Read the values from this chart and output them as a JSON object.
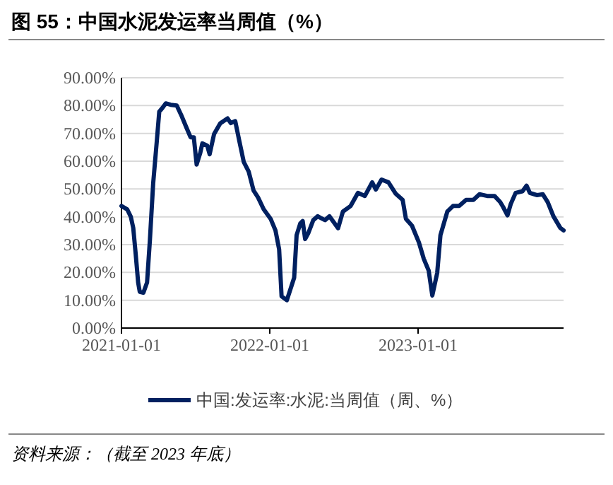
{
  "chart_data": {
    "type": "line",
    "title": "图 55：中国水泥发运率当周值（%）",
    "annotations": [
      "资料来源：（截至 2023 年底）"
    ],
    "x": [
      "2021-01-01",
      "2021-01-15",
      "2021-01-24",
      "2021-01-30",
      "2021-02-05",
      "2021-02-11",
      "2021-02-15",
      "2021-02-24",
      "2021-03-05",
      "2021-03-12",
      "2021-03-20",
      "2021-03-29",
      "2021-04-04",
      "2021-04-12",
      "2021-04-20",
      "2021-05-02",
      "2021-05-17",
      "2021-05-28",
      "2021-06-09",
      "2021-06-20",
      "2021-06-28",
      "2021-07-05",
      "2021-07-14",
      "2021-07-19",
      "2021-07-31",
      "2021-08-06",
      "2021-08-17",
      "2021-09-01",
      "2021-09-19",
      "2021-09-27",
      "2021-10-08",
      "2021-10-18",
      "2021-10-29",
      "2021-11-10",
      "2021-11-22",
      "2021-12-03",
      "2021-12-17",
      "2022-01-03",
      "2022-01-15",
      "2022-01-24",
      "2022-01-30",
      "2022-02-12",
      "2022-03-02",
      "2022-03-08",
      "2022-03-17",
      "2022-03-23",
      "2022-03-29",
      "2022-04-06",
      "2022-04-18",
      "2022-04-29",
      "2022-05-05",
      "2022-05-17",
      "2022-05-28",
      "2022-06-18",
      "2022-06-30",
      "2022-07-19",
      "2022-08-06",
      "2022-08-23",
      "2022-09-10",
      "2022-09-19",
      "2022-10-03",
      "2022-10-20",
      "2022-11-07",
      "2022-11-24",
      "2022-12-02",
      "2022-12-17",
      "2023-01-03",
      "2023-01-15",
      "2023-01-27",
      "2023-02-05",
      "2023-02-17",
      "2023-02-25",
      "2023-03-14",
      "2023-03-28",
      "2023-04-12",
      "2023-04-29",
      "2023-05-17",
      "2023-06-01",
      "2023-06-20",
      "2023-07-08",
      "2023-07-22",
      "2023-07-29",
      "2023-08-09",
      "2023-08-17",
      "2023-08-29",
      "2023-09-15",
      "2023-09-25",
      "2023-10-03",
      "2023-10-20",
      "2023-11-04",
      "2023-11-16",
      "2023-11-30",
      "2023-12-17",
      "2023-12-25"
    ],
    "series": [
      {
        "name": "中国:发运率:水泥:当周值（周、%）",
        "color": "#002060",
        "values": [
          43.9,
          42.7,
          40,
          36,
          26.6,
          16.4,
          13,
          12.7,
          16.4,
          31.7,
          52,
          67.3,
          77.8,
          79.2,
          80.8,
          80.3,
          80,
          76.6,
          72.4,
          68.6,
          68.6,
          58.8,
          63,
          66.4,
          65.6,
          62.5,
          69.8,
          73.6,
          75.4,
          73.7,
          74.4,
          67.3,
          59.7,
          56.3,
          49.5,
          47,
          42.7,
          39.3,
          35.1,
          28.3,
          11.4,
          10,
          18.1,
          33.4,
          37.6,
          38.5,
          32,
          34.2,
          38.8,
          40.2,
          39.7,
          38.8,
          40.2,
          35.9,
          41.9,
          43.9,
          48.6,
          47.5,
          52.4,
          49.8,
          53.4,
          52.4,
          48.3,
          46.1,
          39.3,
          36.8,
          30.8,
          24.9,
          20.7,
          11.7,
          19.8,
          33.4,
          41.9,
          43.9,
          43.9,
          46.1,
          46.1,
          48.1,
          47.5,
          47.5,
          45.3,
          43.6,
          40.5,
          44.6,
          48.6,
          49.2,
          51.2,
          48.6,
          47.8,
          48.1,
          45.3,
          40.2,
          36,
          35.1
        ]
      }
    ],
    "xlim": [
      "2021-01-01",
      "2023-12-25"
    ],
    "xticks": [
      {
        "value": "2021-01-01",
        "label": "2021-01-01"
      },
      {
        "value": "2022-01-01",
        "label": "2022-01-01"
      },
      {
        "value": "2023-01-01",
        "label": "2023-01-01"
      }
    ],
    "ylim": [
      0,
      90
    ],
    "yticks": [
      {
        "value": 0,
        "label": "0.00%"
      },
      {
        "value": 10,
        "label": "10.00%"
      },
      {
        "value": 20,
        "label": "20.00%"
      },
      {
        "value": 30,
        "label": "30.00%"
      },
      {
        "value": 40,
        "label": "40.00%"
      },
      {
        "value": 50,
        "label": "50.00%"
      },
      {
        "value": 60,
        "label": "60.00%"
      },
      {
        "value": 70,
        "label": "70.00%"
      },
      {
        "value": 80,
        "label": "80.00%"
      },
      {
        "value": 90,
        "label": "90.00%"
      }
    ],
    "grid": "y",
    "legend": "bottom",
    "marker": "none",
    "line_style": "solid"
  }
}
